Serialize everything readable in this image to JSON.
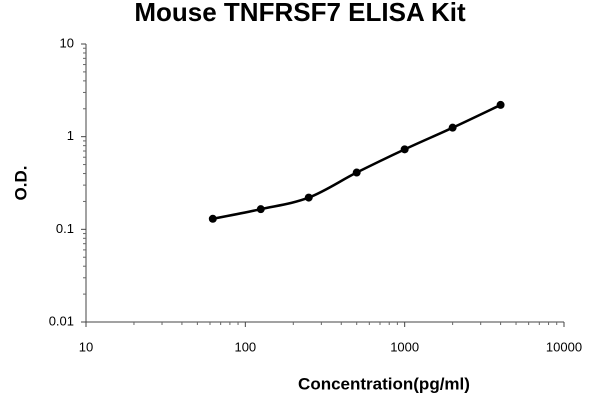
{
  "chart_data": {
    "type": "scatter",
    "title": "Mouse TNFRSF7 ELISA Kit",
    "x_label": "Concentration(pg/ml)",
    "y_label": "O.D.",
    "x": [
      62.5,
      125,
      250,
      500,
      1000,
      2000,
      4000
    ],
    "values": [
      0.13,
      0.165,
      0.22,
      0.41,
      0.73,
      1.25,
      2.2
    ],
    "color": "#000000",
    "fit_line": true,
    "xlog": true,
    "ylog": true,
    "minor_ticks": true,
    "xlim": [
      10,
      10000
    ],
    "xticks": [
      10,
      100,
      1000,
      10000
    ],
    "ylim": [
      0.01,
      10
    ],
    "yticks": [
      0.01,
      0.1,
      1,
      10
    ]
  }
}
